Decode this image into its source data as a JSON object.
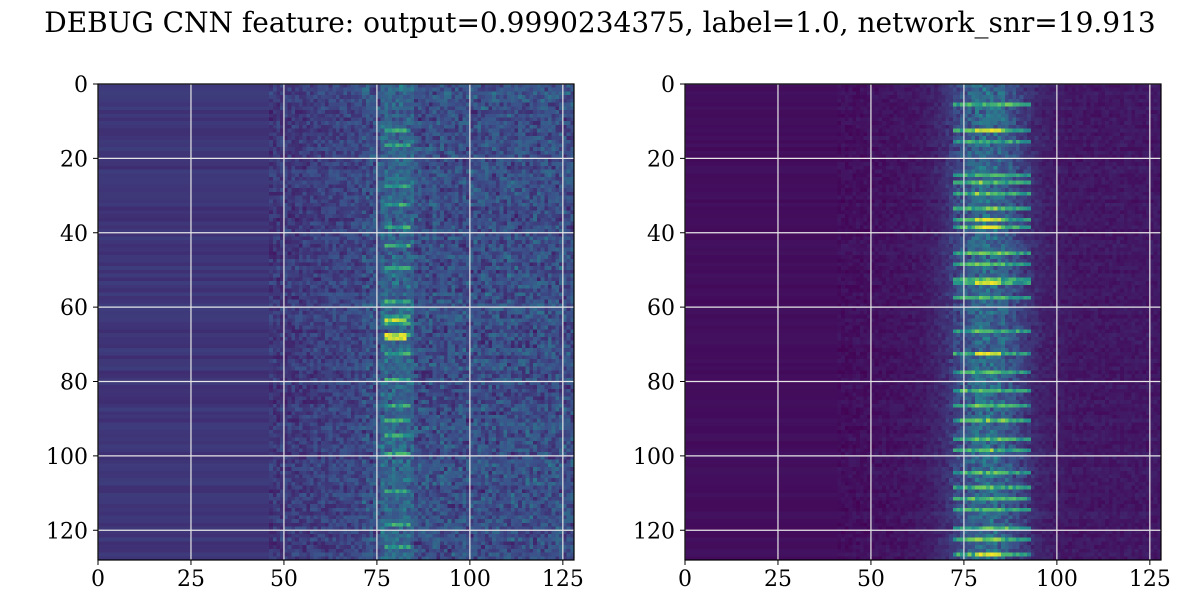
{
  "title": "DEBUG CNN feature: output=0.9990234375, label=1.0, network_snr=19.913",
  "chart_data": [
    {
      "type": "heatmap",
      "colormap": "viridis",
      "grid": true,
      "xlim": [
        0,
        128
      ],
      "ylim": [
        128,
        0
      ],
      "xticks": [
        0,
        25,
        50,
        75,
        100,
        125
      ],
      "yticks": [
        0,
        20,
        40,
        60,
        80,
        100,
        120
      ],
      "bright_rows": [
        12,
        16,
        27,
        32,
        38,
        43,
        49,
        58,
        62,
        64,
        67,
        72,
        79,
        86,
        90,
        94,
        99,
        109,
        118,
        124
      ],
      "peak_rows": [
        63,
        67,
        68
      ]
    },
    {
      "type": "heatmap",
      "colormap": "viridis",
      "grid": true,
      "xlim": [
        0,
        128
      ],
      "ylim": [
        128,
        0
      ],
      "xticks": [
        0,
        25,
        50,
        75,
        100,
        125
      ],
      "yticks": [
        0,
        20,
        40,
        60,
        80,
        100,
        120
      ],
      "bright_rows": [
        5,
        12,
        15,
        24,
        26,
        29,
        33,
        36,
        38,
        45,
        48,
        52,
        53,
        57,
        66,
        72,
        77,
        82,
        86,
        90,
        95,
        98,
        104,
        108,
        111,
        114,
        119,
        122,
        126
      ],
      "peak_rows": [
        12,
        36,
        38,
        53,
        72,
        126
      ]
    }
  ]
}
